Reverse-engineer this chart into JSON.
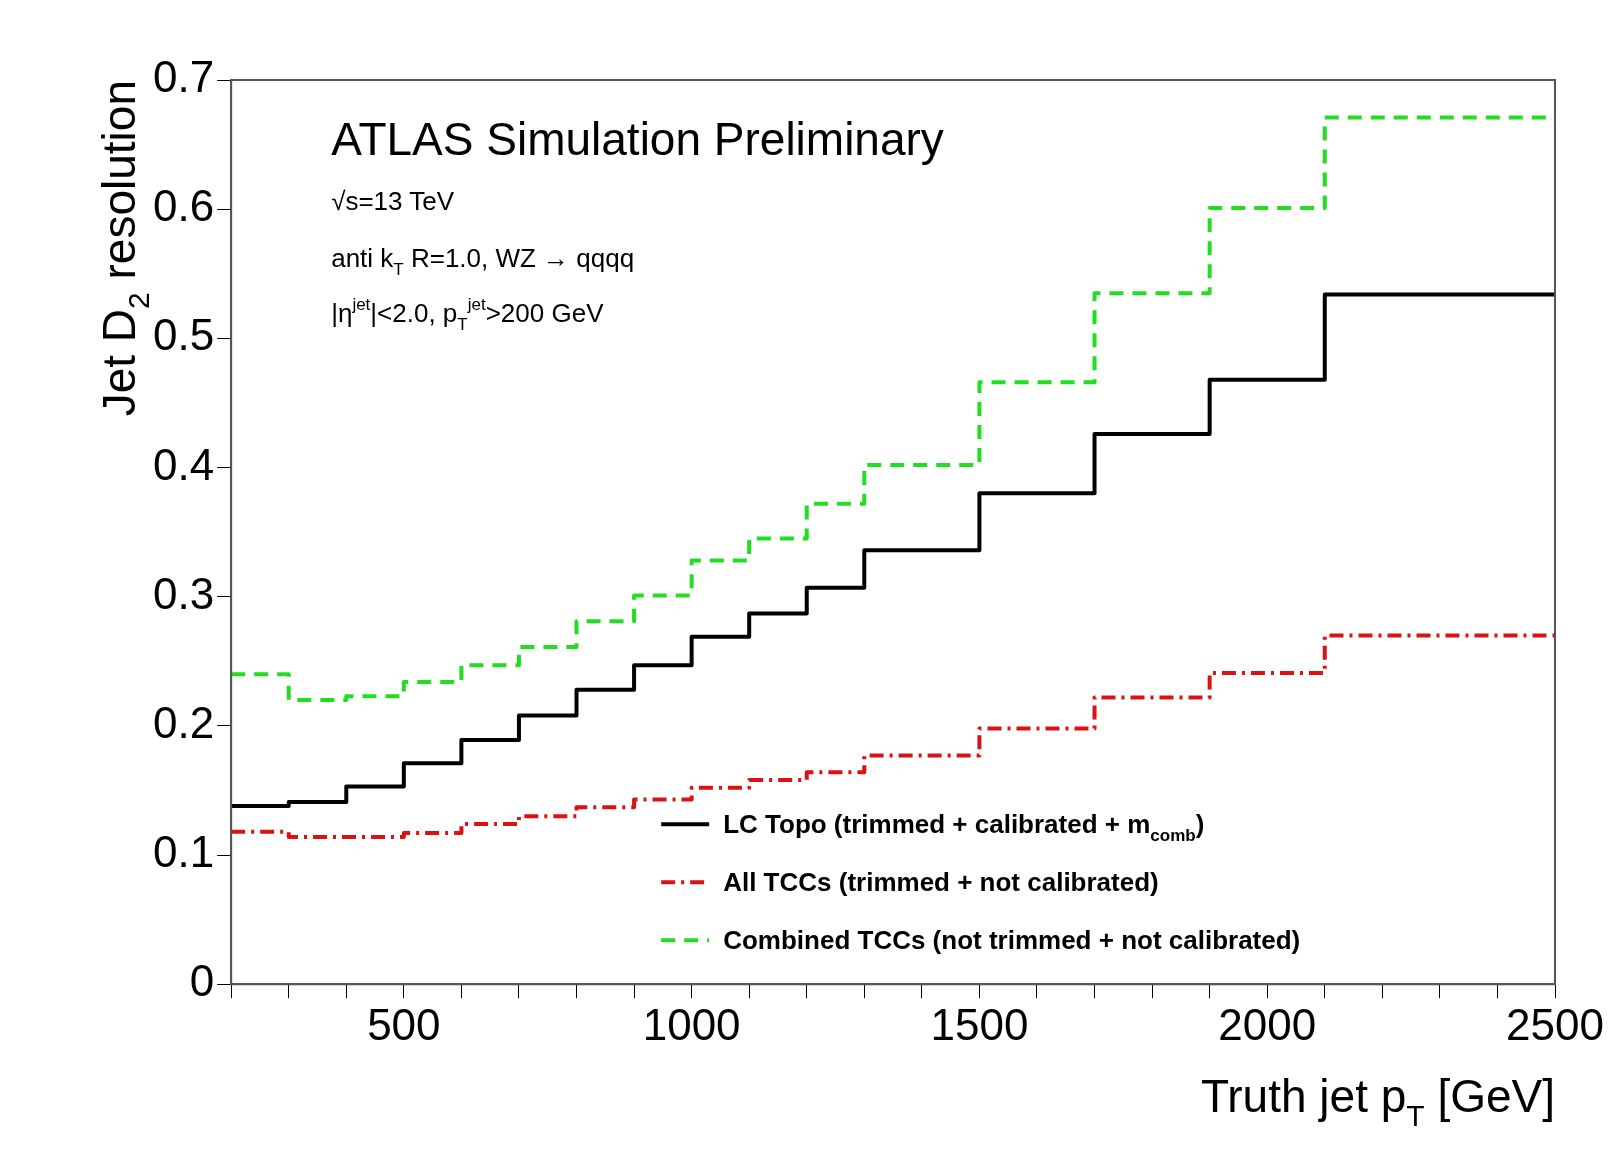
{
  "chart_data": {
    "type": "histogram",
    "xlabel": "Truth jet p$_{T}$ [GeV]",
    "ylabel": "Jet D$_{2}$ resolution",
    "annotations": [
      "ATLAS Simulation Preliminary",
      "√s=13 TeV",
      "anti k$_{T}$ R=1.0, WZ → qqqq",
      "|η$^{jet}$|<2.0, p$_{T}$$^{jet}$>200 GeV"
    ],
    "bins": [
      200,
      300,
      400,
      500,
      600,
      700,
      800,
      900,
      1000,
      1100,
      1200,
      1300,
      1500,
      1700,
      1900,
      2100,
      2500
    ],
    "series": [
      {
        "name": "LC Topo (trimmed + calibrated + m$_{comb}$)",
        "color": "#000000",
        "line_style": "solid",
        "values": [
          0.138,
          0.141,
          0.153,
          0.171,
          0.189,
          0.208,
          0.228,
          0.247,
          0.269,
          0.287,
          0.307,
          0.336,
          0.38,
          0.426,
          0.468,
          0.534
        ]
      },
      {
        "name": "All TCCs (trimmed + not calibrated)",
        "color": "#dd1111",
        "line_style": "dashdot",
        "values": [
          0.118,
          0.114,
          0.114,
          0.117,
          0.124,
          0.13,
          0.137,
          0.143,
          0.152,
          0.158,
          0.164,
          0.177,
          0.198,
          0.222,
          0.241,
          0.27
        ]
      },
      {
        "name": "Combined TCCs (not trimmed + not calibrated)",
        "color": "#22dd22",
        "line_style": "dashed",
        "values": [
          0.24,
          0.22,
          0.223,
          0.234,
          0.247,
          0.261,
          0.281,
          0.301,
          0.328,
          0.345,
          0.372,
          0.402,
          0.466,
          0.535,
          0.601,
          0.671
        ]
      }
    ],
    "xlim": [
      200,
      2500
    ],
    "xticks": [
      {
        "value": 200,
        "label": null
      },
      {
        "value": 300,
        "label": null
      },
      {
        "value": 400,
        "label": null
      },
      500,
      {
        "value": 600,
        "label": null
      },
      {
        "value": 700,
        "label": null
      },
      {
        "value": 800,
        "label": null
      },
      {
        "value": 900,
        "label": null
      },
      1000,
      {
        "value": 1100,
        "label": null
      },
      {
        "value": 1200,
        "label": null
      },
      {
        "value": 1300,
        "label": null
      },
      {
        "value": 1400,
        "label": null
      },
      1500,
      {
        "value": 1600,
        "label": null
      },
      {
        "value": 1700,
        "label": null
      },
      {
        "value": 1800,
        "label": null
      },
      {
        "value": 1900,
        "label": null
      },
      2000,
      {
        "value": 2100,
        "label": null
      },
      {
        "value": 2200,
        "label": null
      },
      {
        "value": 2300,
        "label": null
      },
      {
        "value": 2400,
        "label": null
      },
      2500
    ],
    "ylim": [
      0,
      0.7
    ],
    "yticks": [
      0,
      0.1,
      0.2,
      0.3,
      0.4,
      0.5,
      0.6,
      0.7
    ],
    "grid": false,
    "legend": "bottom right"
  }
}
